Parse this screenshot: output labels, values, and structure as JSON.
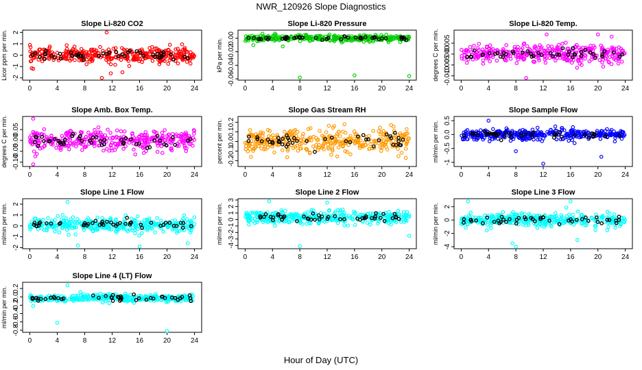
{
  "figure": {
    "title": "NWR_120926  Slope Diagnostics",
    "xlabel": "Hour of Day (UTC)"
  },
  "chart_data": [
    {
      "type": "scatter",
      "title": "Slope Li-820 CO2",
      "ylabel": "Licor ppm per min.",
      "color": "#ff0000",
      "xlim": [
        0,
        24
      ],
      "ylim": [
        -2.2,
        2.2
      ],
      "xticks": [
        0,
        4,
        8,
        12,
        16,
        20,
        24
      ],
      "yticks": [
        -2,
        -1,
        0,
        1,
        2
      ],
      "ytick_labels": [
        "-2",
        "-1",
        "0",
        "1",
        "2"
      ],
      "center": 0,
      "spread": 0.6,
      "black_spread": 0.3,
      "outliers": [
        [
          10.5,
          -2.0
        ],
        [
          11.8,
          -1.6
        ],
        [
          11.2,
          2.0
        ],
        [
          13.5,
          -1.5
        ],
        [
          0.5,
          -1.2
        ]
      ]
    },
    {
      "type": "scatter",
      "title": "Slope Li-820 Pressure",
      "ylabel": "kPa per min.",
      "color": "#00cc00",
      "xlim": [
        0,
        24
      ],
      "ylim": [
        -0.062,
        0.012
      ],
      "xticks": [
        0,
        4,
        8,
        12,
        16,
        20,
        24
      ],
      "yticks": [
        -0.06,
        -0.04,
        -0.02,
        0.0
      ],
      "ytick_labels": [
        "-0.06",
        "-0.04",
        "-0.02",
        "0.00"
      ],
      "center": 0,
      "spread": 0.004,
      "black_spread": 0.002,
      "outliers": [
        [
          8,
          -0.058
        ],
        [
          16,
          -0.055
        ],
        [
          24,
          -0.056
        ],
        [
          1.2,
          -0.01
        ],
        [
          5.5,
          -0.012
        ]
      ]
    },
    {
      "type": "scatter",
      "title": "Slope Li-820 Temp.",
      "ylabel": "degrees C per min.",
      "color": "#ff00ff",
      "xlim": [
        0,
        24
      ],
      "ylim": [
        -0.012,
        0.011
      ],
      "xticks": [
        0,
        4,
        8,
        12,
        16,
        20,
        24
      ],
      "yticks": [
        -0.01,
        -0.005,
        0.0,
        0.005
      ],
      "ytick_labels": [
        "-0.010",
        "-0.005",
        "0.000",
        "0.005"
      ],
      "center": 0,
      "spread": 0.004,
      "black_spread": 0.002,
      "outliers": [
        [
          12.5,
          0.009
        ],
        [
          20,
          0.009
        ],
        [
          22,
          0.008
        ],
        [
          9.5,
          -0.011
        ]
      ]
    },
    {
      "type": "scatter",
      "title": "Slope Amb. Box Temp.",
      "ylabel": "degrees C per min.",
      "color": "#ff00ff",
      "xlim": [
        0,
        24
      ],
      "ylim": [
        -0.12,
        0.11
      ],
      "xticks": [
        0,
        4,
        8,
        12,
        16,
        20,
        24
      ],
      "yticks": [
        -0.1,
        -0.05,
        0.0,
        0.05
      ],
      "ytick_labels": [
        "-0.10",
        "-0.05",
        "0.00",
        "0.05"
      ],
      "center": 0,
      "spread": 0.04,
      "black_spread": 0.025,
      "outliers": [
        [
          0.5,
          0.1
        ],
        [
          0.5,
          -0.11
        ],
        [
          10,
          0.06
        ]
      ]
    },
    {
      "type": "scatter",
      "title": "Slope Gas Stream RH",
      "ylabel": "percent per min.",
      "color": "#ff9900",
      "xlim": [
        0,
        24
      ],
      "ylim": [
        -0.26,
        0.26
      ],
      "xticks": [
        0,
        4,
        8,
        12,
        16,
        20,
        24
      ],
      "yticks": [
        -0.2,
        -0.1,
        0.0,
        0.1,
        0.2
      ],
      "ytick_labels": [
        "-0.2",
        "-0.1",
        "0.0",
        "0.1",
        "0.2"
      ],
      "center": 0,
      "spread": 0.12,
      "black_spread": 0.06,
      "outliers": [
        [
          23.5,
          -0.17
        ]
      ]
    },
    {
      "type": "scatter",
      "title": "Slope Sample Flow",
      "ylabel": "ml/min per min.",
      "color": "#0000ff",
      "xlim": [
        0,
        24
      ],
      "ylim": [
        -1.15,
        0.65
      ],
      "xticks": [
        0,
        4,
        8,
        12,
        16,
        20,
        24
      ],
      "yticks": [
        -1.0,
        -0.5,
        0.0,
        0.5
      ],
      "ytick_labels": [
        "-1",
        "-0.5",
        "0.0",
        "0.5"
      ],
      "center": 0,
      "spread": 0.17,
      "black_spread": 0.1,
      "outliers": [
        [
          12,
          -1.05
        ],
        [
          8,
          -0.6
        ],
        [
          20.5,
          -0.8
        ],
        [
          4,
          0.5
        ]
      ]
    },
    {
      "type": "scatter",
      "title": "Slope Line 1 Flow",
      "ylabel": "ml/min per min.",
      "color": "#00ffff",
      "xlim": [
        0,
        24
      ],
      "ylim": [
        -2.1,
        2.5
      ],
      "xticks": [
        0,
        4,
        8,
        12,
        16,
        20,
        24
      ],
      "yticks": [
        -2,
        -1,
        0,
        1,
        2
      ],
      "ytick_labels": [
        "-2",
        "-1",
        "0",
        "1",
        "2"
      ],
      "center": 0.1,
      "spread": 0.6,
      "black_spread": 0.3,
      "outliers": [
        [
          5.5,
          2.2
        ],
        [
          7,
          -1.8
        ],
        [
          16,
          -1.9
        ],
        [
          23,
          -1.6
        ]
      ]
    },
    {
      "type": "scatter",
      "title": "Slope Line 2 Flow",
      "ylabel": "ml/min per min.",
      "color": "#00ffff",
      "xlim": [
        0,
        24
      ],
      "ylim": [
        -4.5,
        3.2
      ],
      "xticks": [
        0,
        4,
        8,
        12,
        16,
        20,
        24
      ],
      "yticks": [
        -4,
        -3,
        -2,
        -1,
        0,
        1,
        2,
        3
      ],
      "ytick_labels": [
        "-4",
        "-3",
        "-2",
        "-1",
        "0",
        "1",
        "2",
        "3"
      ],
      "center": 0.3,
      "spread": 0.9,
      "black_spread": 0.5,
      "outliers": [
        [
          8,
          -4.1
        ],
        [
          24,
          -2.5
        ],
        [
          3.5,
          2.8
        ],
        [
          12,
          2.6
        ]
      ]
    },
    {
      "type": "scatter",
      "title": "Slope Line 3 Flow",
      "ylabel": "ml/min per min.",
      "color": "#00ffff",
      "xlim": [
        0,
        24
      ],
      "ylim": [
        -4.3,
        3.2
      ],
      "xticks": [
        0,
        4,
        8,
        12,
        16,
        20,
        24
      ],
      "yticks": [
        -4,
        -2,
        0,
        2
      ],
      "ytick_labels": [
        "-4",
        "-2",
        "0",
        "2"
      ],
      "center": 0,
      "spread": 0.9,
      "black_spread": 0.5,
      "outliers": [
        [
          8,
          -4.0
        ],
        [
          7.5,
          -3.5
        ],
        [
          17,
          -3.0
        ],
        [
          1,
          2.8
        ],
        [
          16,
          2.8
        ]
      ]
    },
    {
      "type": "scatter",
      "title": "Slope Line 4 (LT) Flow",
      "ylabel": "ml/min per min.",
      "color": "#00ffff",
      "xlim": [
        0,
        24
      ],
      "ylim": [
        -0.85,
        0.35
      ],
      "xticks": [
        0,
        4,
        8,
        12,
        16,
        20,
        24
      ],
      "yticks": [
        -0.8,
        -0.6,
        -0.4,
        -0.2,
        0.0,
        0.2
      ],
      "ytick_labels": [
        "-0.8",
        "-0.6",
        "-0.4",
        "-0.2",
        "0.0",
        "0.2"
      ],
      "center": -0.03,
      "spread": 0.08,
      "black_spread": 0.05,
      "outliers": [
        [
          4,
          -0.62
        ],
        [
          20,
          -0.82
        ],
        [
          5.5,
          0.28
        ],
        [
          0.5,
          -0.22
        ]
      ]
    }
  ]
}
